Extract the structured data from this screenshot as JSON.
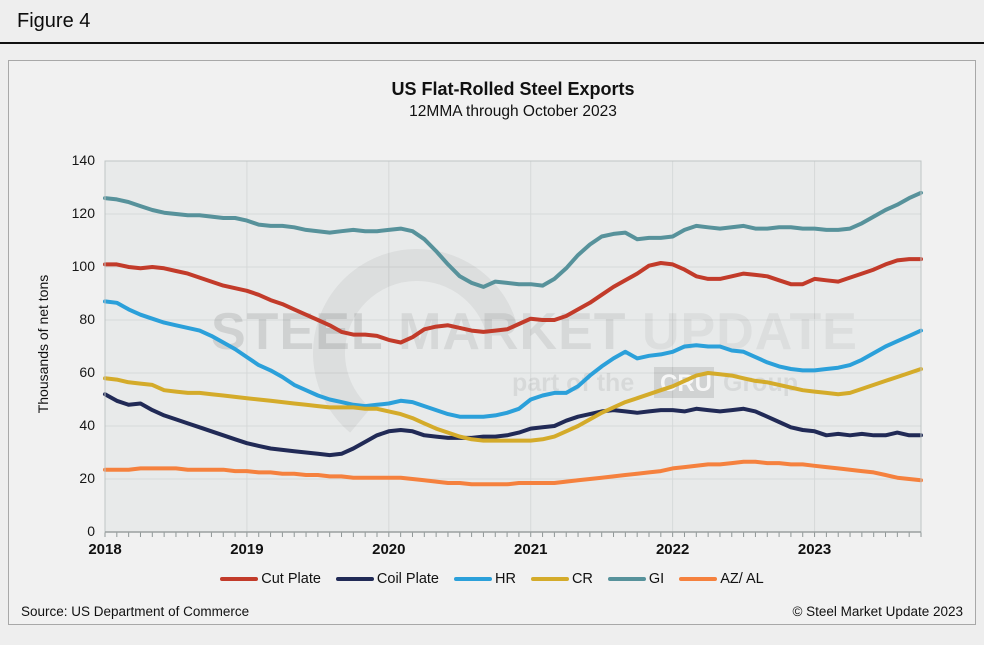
{
  "figure_label": "Figure 4",
  "footer": {
    "source": "Source: US Department of Commerce",
    "copyright": "© Steel Market Update 2023"
  },
  "watermark": {
    "line1_word1": "STEEL",
    "line1_word2": "MARKET",
    "line1_word3": "UPDATE",
    "line2_prefix": "part of the",
    "line2_box": "CRU",
    "line2_suffix": "Group"
  },
  "chart_data": {
    "type": "line",
    "title": "US Flat-Rolled Steel Exports",
    "subtitle": "12MMA through October 2023",
    "ylabel": "Thousands of net tons",
    "ylim": [
      0,
      140
    ],
    "y_ticks": [
      0,
      20,
      40,
      60,
      80,
      100,
      120,
      140
    ],
    "x_ticks": [
      "2018",
      "2019",
      "2020",
      "2021",
      "2022",
      "2023"
    ],
    "x_unit": "month",
    "x_start": "2018-01",
    "x_end": "2023-10",
    "grid": true,
    "legend_position": "bottom",
    "plot_bg": "#e8eaea",
    "grid_color": "#d6d9d9",
    "series": [
      {
        "name": "Cut Plate",
        "color": "#c23b2a",
        "values": [
          101,
          101,
          100,
          99.5,
          100,
          99.5,
          98.5,
          97.5,
          96,
          94.5,
          93,
          92,
          91,
          89.5,
          87.5,
          86,
          84,
          82,
          80,
          78,
          75.5,
          74.5,
          74.5,
          74,
          72.5,
          71.5,
          73.5,
          76.5,
          77.5,
          78,
          77,
          76,
          75.5,
          76,
          76.5,
          78.5,
          80.5,
          80,
          80,
          81.5,
          84,
          86.5,
          89.5,
          92.5,
          95,
          97.5,
          100.5,
          101.5,
          101,
          99,
          96.5,
          95.5,
          95.5,
          96.5,
          97.5,
          97,
          96.5,
          95,
          93.5,
          93.5,
          95.5,
          95,
          94.5,
          96,
          97.5,
          99,
          101,
          102.5,
          103,
          103
        ]
      },
      {
        "name": "Coil Plate",
        "color": "#212a56",
        "values": [
          52,
          49.5,
          48,
          48.5,
          46,
          44,
          42.5,
          41,
          39.5,
          38,
          36.5,
          35,
          33.5,
          32.5,
          31.5,
          31,
          30.5,
          30,
          29.5,
          29,
          29.5,
          31.5,
          34,
          36.5,
          38,
          38.5,
          38,
          36.5,
          36,
          35.5,
          35.5,
          35.5,
          36,
          36,
          36.5,
          37.5,
          39,
          39.5,
          40,
          42,
          43.5,
          44.5,
          45.5,
          46,
          45.5,
          45,
          45.5,
          46,
          46,
          45.5,
          46.5,
          46,
          45.5,
          46,
          46.5,
          45.5,
          43.5,
          41.5,
          39.5,
          38.5,
          38,
          36.5,
          37,
          36.5,
          37,
          36.5,
          36.5,
          37.5,
          36.5,
          36.5
        ]
      },
      {
        "name": "HR",
        "color": "#2ba0da",
        "values": [
          87,
          86.5,
          84,
          82,
          80.5,
          79,
          78,
          77,
          76,
          74,
          71.5,
          69,
          66,
          63,
          61,
          58.5,
          55.5,
          53.5,
          51.5,
          50,
          49,
          48,
          47.5,
          48,
          48.5,
          49.5,
          49,
          47.5,
          46,
          44.5,
          43.5,
          43.5,
          43.5,
          44,
          45,
          46.5,
          50,
          51.5,
          52.5,
          52.5,
          55,
          59,
          62.5,
          65.5,
          68,
          65.5,
          66.5,
          67,
          68,
          70,
          70.5,
          70,
          70,
          68.5,
          68,
          66,
          64,
          62.5,
          61.5,
          61,
          61,
          61.5,
          62,
          63,
          65,
          67.5,
          70,
          72,
          74,
          76
        ]
      },
      {
        "name": "CR",
        "color": "#d4ab2a",
        "values": [
          58,
          57.5,
          56.5,
          56,
          55.5,
          53.5,
          53,
          52.5,
          52.5,
          52,
          51.5,
          51,
          50.5,
          50,
          49.5,
          49,
          48.5,
          48,
          47.5,
          47,
          47,
          47,
          46.5,
          46.5,
          45.5,
          44.5,
          43,
          41,
          39,
          37.5,
          36,
          35,
          34.5,
          34.5,
          34.5,
          34.5,
          34.5,
          35,
          36,
          38,
          40,
          42.5,
          45,
          47,
          49,
          50.5,
          52,
          53.5,
          55,
          57,
          59,
          60,
          59.5,
          59,
          58,
          57,
          56.5,
          55.5,
          54.5,
          53.5,
          53,
          52.5,
          52,
          52.5,
          54,
          55.5,
          57,
          58.5,
          60,
          61.5
        ]
      },
      {
        "name": "GI",
        "color": "#57929b",
        "values": [
          126,
          125.5,
          124.5,
          123,
          121.5,
          120.5,
          120,
          119.5,
          119.5,
          119,
          118.5,
          118.5,
          117.5,
          116,
          115.5,
          115.5,
          115,
          114,
          113.5,
          113,
          113.5,
          114,
          113.5,
          113.5,
          114,
          114.5,
          113.5,
          110.5,
          106,
          101,
          96.5,
          94,
          92.5,
          94.5,
          94,
          93.5,
          93.5,
          93,
          95.5,
          99.5,
          104.5,
          108.5,
          111.5,
          112.5,
          113,
          110.5,
          111,
          111,
          111.5,
          114,
          115.5,
          115,
          114.5,
          115,
          115.5,
          114.5,
          114.5,
          115,
          115,
          114.5,
          114.5,
          114,
          114,
          114.5,
          116.5,
          119,
          121.5,
          123.5,
          126,
          128
        ]
      },
      {
        "name": "AZ/ AL",
        "color": "#f5813e",
        "values": [
          23.5,
          23.5,
          23.5,
          24,
          24,
          24,
          24,
          23.5,
          23.5,
          23.5,
          23.5,
          23,
          23,
          22.5,
          22.5,
          22,
          22,
          21.5,
          21.5,
          21,
          21,
          20.5,
          20.5,
          20.5,
          20.5,
          20.5,
          20,
          19.5,
          19,
          18.5,
          18.5,
          18,
          18,
          18,
          18,
          18.5,
          18.5,
          18.5,
          18.5,
          19,
          19.5,
          20,
          20.5,
          21,
          21.5,
          22,
          22.5,
          23,
          24,
          24.5,
          25,
          25.5,
          25.5,
          26,
          26.5,
          26.5,
          26,
          26,
          25.5,
          25.5,
          25,
          24.5,
          24,
          23.5,
          23,
          22.5,
          21.5,
          20.5,
          20,
          19.5
        ]
      }
    ]
  }
}
